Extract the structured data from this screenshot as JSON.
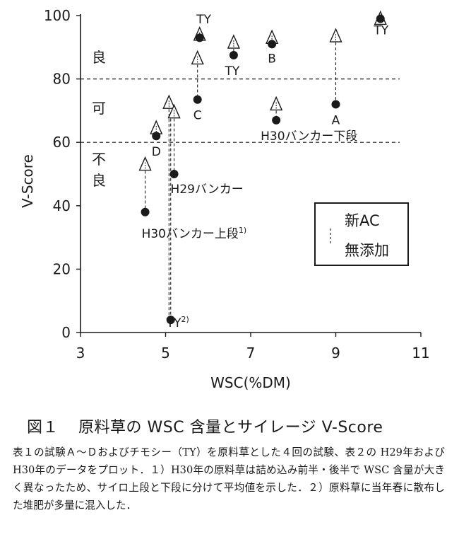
{
  "chart_data": {
    "type": "scatter",
    "xlabel": "WSC(%DM)",
    "ylabel": "V-Score",
    "xlim": [
      3,
      11
    ],
    "ylim": [
      0,
      100
    ],
    "xticks": [
      "3",
      "5",
      "7",
      "9",
      "11"
    ],
    "yticks": [
      "0",
      "20",
      "40",
      "60",
      "80",
      "100"
    ],
    "grid": false,
    "thresholds": [
      60,
      80
    ],
    "zones": [
      {
        "label": "良",
        "range": [
          80,
          100
        ]
      },
      {
        "label": "可",
        "range": [
          60,
          80
        ]
      },
      {
        "label": "不良",
        "range": [
          0,
          60
        ]
      }
    ],
    "legend": {
      "placement": "right-middle",
      "entries": [
        {
          "marker": "triangle",
          "label": "新AC"
        },
        {
          "marker": "circle",
          "label": "無添加"
        }
      ]
    },
    "pairs": [
      {
        "label": "TY",
        "label_at": "ac",
        "x": 5.8,
        "ac": 94,
        "none": 93
      },
      {
        "label": "TY",
        "label_at": "none",
        "x": 6.6,
        "ac": 91.5,
        "none": 87.5
      },
      {
        "label": "B",
        "label_at": "none",
        "x": 7.5,
        "ac": 93,
        "none": 91
      },
      {
        "label": "",
        "label_at": "none",
        "x": 9.0,
        "ac": 93.5,
        "none": 72
      },
      {
        "label": "A",
        "label_at": "none",
        "x": 9.0,
        "ac": null,
        "none": null
      },
      {
        "label": "TY",
        "label_at": "none",
        "x": 10.05,
        "ac": 99,
        "none": 99
      },
      {
        "label": "C",
        "label_at": "none",
        "x": 5.75,
        "ac": 86.5,
        "none": 73.5
      },
      {
        "label": "H30バンカー下段",
        "label_at": "none",
        "x": 7.6,
        "ac": 72,
        "none": 67
      },
      {
        "label": "D",
        "label_at": "none",
        "x": 4.78,
        "ac": 64.5,
        "none": 62
      },
      {
        "label": "",
        "label_at": "none",
        "x": 5.08,
        "ac": 72.5,
        "none": null
      },
      {
        "label": "H29バンカー",
        "label_at": "none",
        "x": 5.2,
        "ac": 69.5,
        "none": 50
      },
      {
        "label": "H30バンカー上段",
        "label_sup": "1)",
        "label_at": "none",
        "x": 4.52,
        "ac": 53,
        "none": 38
      },
      {
        "label": "TY",
        "label_sup": "2)",
        "label_at": "none",
        "x": 5.12,
        "ac": null,
        "none": 4
      }
    ]
  },
  "caption": {
    "title_num": "図１",
    "title": "原料草の WSC 含量とサイレージ V-Score",
    "body": "表１の試験Ａ～Ｄおよびチモシー（TY）を原料草とした４回の試験、表２の H29年および H30年のデータをプロット．１）H30年の原料草は詰め込み前半・後半で WSC 含量が大きく異なったため、サイロ上段と下段に分けて平均値を示した．２）原料草に当年春に散布した堆肥が多量に混入した．"
  }
}
